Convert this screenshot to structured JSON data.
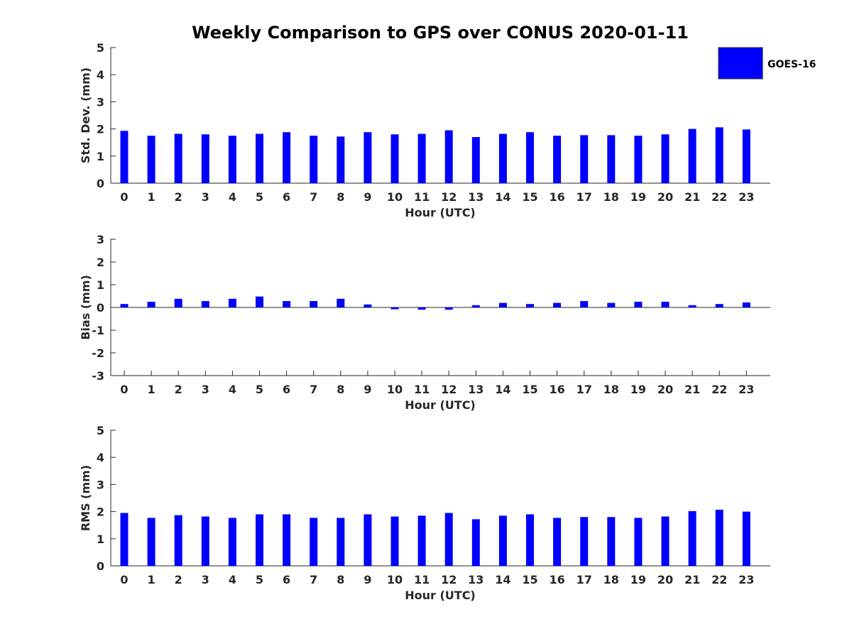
{
  "chart_data": {
    "type": "bar",
    "title": "Weekly Comparison to GPS over CONUS 2020-01-11",
    "legend": {
      "label": "GOES-16",
      "color": "#0000ff",
      "placement": "top-right"
    },
    "bar_color": "#0000ff",
    "categories": [
      "0",
      "1",
      "2",
      "3",
      "4",
      "5",
      "6",
      "7",
      "8",
      "9",
      "10",
      "11",
      "12",
      "13",
      "14",
      "15",
      "16",
      "17",
      "18",
      "19",
      "20",
      "21",
      "22",
      "23"
    ],
    "panels": [
      {
        "id": "std",
        "ylabel": "Std. Dev. (mm)",
        "xlabel": "Hour (UTC)",
        "ylim": [
          0,
          5
        ],
        "yticks": [
          "0",
          "1",
          "2",
          "3",
          "4",
          "5"
        ],
        "series": [
          {
            "name": "GOES-16",
            "values": [
              1.93,
              1.75,
              1.82,
              1.8,
              1.75,
              1.82,
              1.88,
              1.75,
              1.72,
              1.88,
              1.8,
              1.82,
              1.95,
              1.7,
              1.82,
              1.88,
              1.75,
              1.77,
              1.77,
              1.75,
              1.8,
              2.0,
              2.06,
              1.98
            ]
          }
        ]
      },
      {
        "id": "bias",
        "ylabel": "Bias (mm)",
        "xlabel": "Hour (UTC)",
        "ylim": [
          -3,
          3
        ],
        "yticks": [
          "-3",
          "-2",
          "-1",
          "0",
          "1",
          "2",
          "3"
        ],
        "series": [
          {
            "name": "GOES-16",
            "values": [
              0.15,
              0.25,
              0.38,
              0.28,
              0.38,
              0.48,
              0.28,
              0.28,
              0.38,
              0.13,
              -0.08,
              -0.1,
              -0.1,
              0.1,
              0.2,
              0.15,
              0.2,
              0.28,
              0.2,
              0.25,
              0.25,
              0.1,
              0.15,
              0.22
            ]
          }
        ]
      },
      {
        "id": "rms",
        "ylabel": "RMS (mm)",
        "xlabel": "Hour (UTC)",
        "ylim": [
          0,
          5
        ],
        "yticks": [
          "0",
          "1",
          "2",
          "3",
          "4",
          "5"
        ],
        "series": [
          {
            "name": "GOES-16",
            "values": [
              1.95,
              1.77,
              1.87,
              1.82,
              1.77,
              1.9,
              1.9,
              1.77,
              1.77,
              1.9,
              1.82,
              1.85,
              1.95,
              1.72,
              1.85,
              1.9,
              1.77,
              1.8,
              1.8,
              1.77,
              1.82,
              2.02,
              2.07,
              2.0
            ]
          }
        ]
      }
    ]
  }
}
